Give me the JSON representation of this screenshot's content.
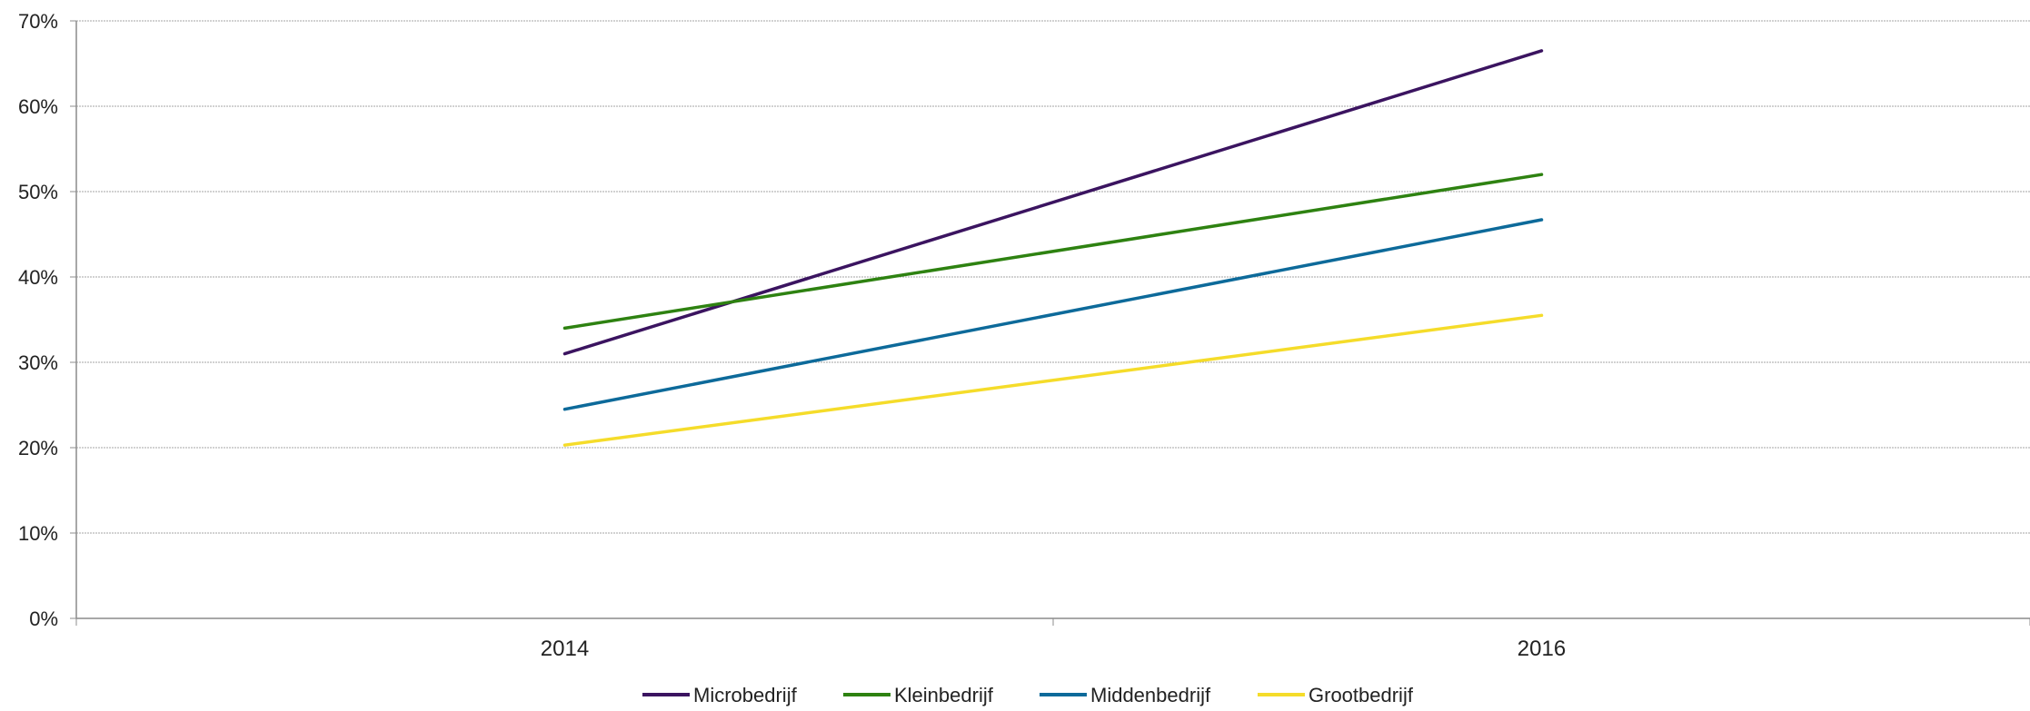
{
  "chart_data": {
    "type": "line",
    "title": "",
    "xlabel": "",
    "ylabel": "",
    "categories": [
      "2014",
      "2016"
    ],
    "ylim": [
      0,
      70
    ],
    "yticks": [
      0,
      10,
      20,
      30,
      40,
      50,
      60,
      70
    ],
    "ytick_labels": [
      "0%",
      "10%",
      "20%",
      "30%",
      "40%",
      "50%",
      "60%",
      "70%"
    ],
    "grid": true,
    "legend_position": "bottom",
    "series": [
      {
        "name": "Microbedrijf",
        "values": [
          31,
          66.5
        ],
        "color": "#3b1460"
      },
      {
        "name": "Kleinbedrijf",
        "values": [
          34,
          52
        ],
        "color": "#2e8211"
      },
      {
        "name": "Middenbedrijf",
        "values": [
          24.5,
          46.7
        ],
        "color": "#0d6a9a"
      },
      {
        "name": "Grootbedrijf",
        "values": [
          20.3,
          35.5
        ],
        "color": "#f5dc2a"
      }
    ]
  }
}
